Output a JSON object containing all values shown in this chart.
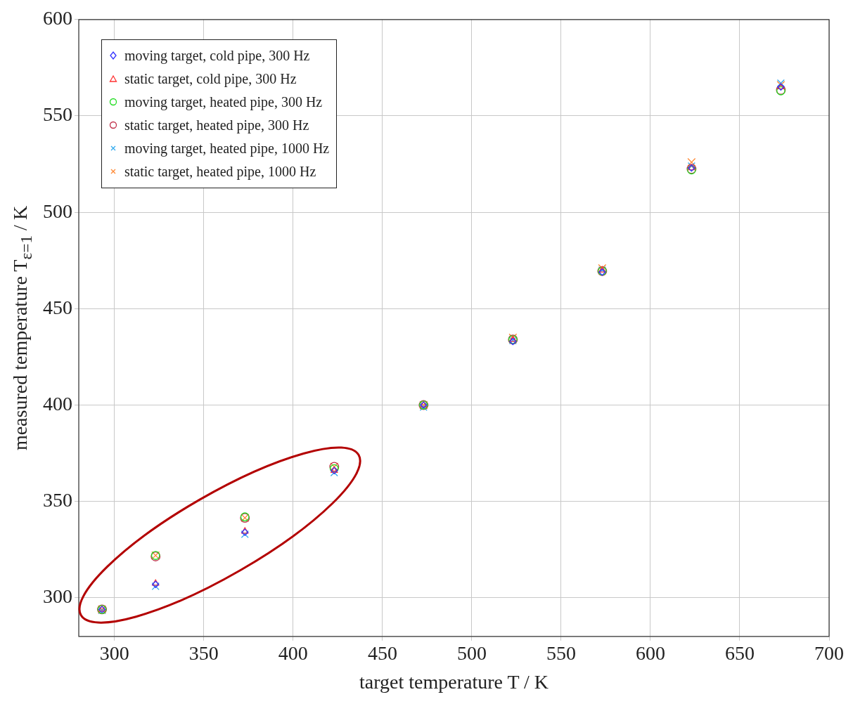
{
  "chart_data": {
    "type": "scatter",
    "xlabel": "target temperature T / K",
    "ylabel": "measured temperature T$_{ε=1}$ / K",
    "x": [
      293,
      323,
      373,
      423,
      473,
      523,
      573,
      623,
      673
    ],
    "xlim": [
      280,
      700
    ],
    "xticks": [
      300,
      350,
      400,
      450,
      500,
      550,
      600,
      650,
      700
    ],
    "ylim": [
      280,
      600
    ],
    "yticks": [
      300,
      350,
      400,
      450,
      500,
      550,
      600
    ],
    "grid": true,
    "legend": "top left",
    "series": [
      {
        "name": "moving target, cold pipe, 300 Hz",
        "color": "#3333ff",
        "marker": "diamond",
        "values": [
          294,
          307,
          334,
          366,
          400,
          433,
          469,
          523,
          565
        ]
      },
      {
        "name": "static target, cold pipe, 300 Hz",
        "color": "#ff3333",
        "marker": "triangle",
        "values": [
          294,
          307.5,
          334.5,
          366,
          400,
          434,
          470,
          523,
          565
        ]
      },
      {
        "name": "moving target, heated pipe, 300 Hz",
        "color": "#22dd22",
        "marker": "circle",
        "values": [
          294,
          322,
          342,
          367,
          400,
          434,
          469.5,
          522,
          563
        ]
      },
      {
        "name": "static target, heated pipe, 300 Hz",
        "color": "#c0304a",
        "marker": "circle",
        "values": [
          294,
          321.5,
          341.5,
          368,
          400,
          434,
          469.5,
          522.5,
          563.5
        ]
      },
      {
        "name": "moving target, heated pipe, 1000 Hz",
        "color": "#33aaee",
        "marker": "cross",
        "values": [
          293.5,
          306,
          333,
          365,
          399,
          433.5,
          470,
          524,
          567
        ]
      },
      {
        "name": "static target, heated pipe, 1000 Hz",
        "color": "#ff8833",
        "marker": "cross",
        "values": [
          294,
          322,
          341.5,
          368,
          400,
          435,
          471,
          526,
          566
        ]
      }
    ]
  }
}
